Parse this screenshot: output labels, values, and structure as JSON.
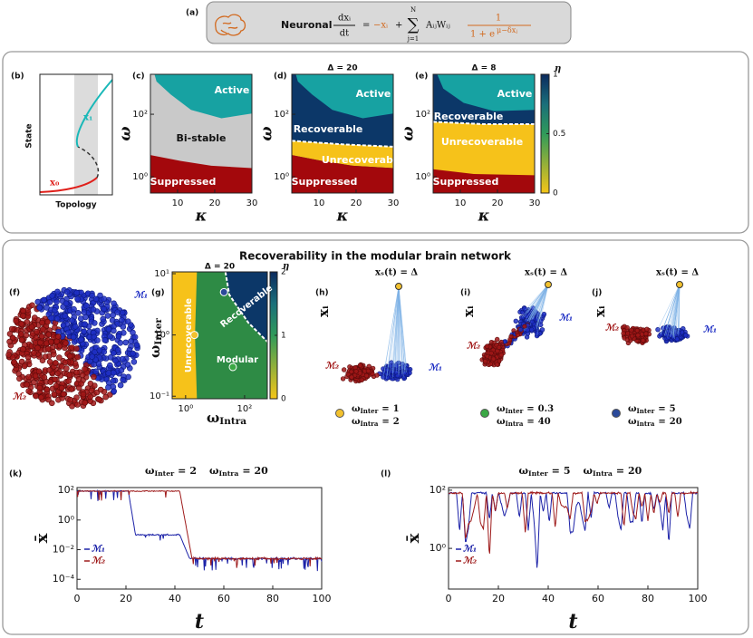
{
  "panel_a": {
    "label": "(a)",
    "model": "Neuronal",
    "eq": {
      "lhs_num": "dxᵢ",
      "lhs_den": "dt",
      "equals": "=",
      "decay": "−xᵢ",
      "plus": "+",
      "sum": "∑",
      "sum_top": "N",
      "sum_bottom": "j=1",
      "coupling": "AᵢⱼWᵢⱼ",
      "frac_num": "1",
      "frac_den": "1 + e",
      "frac_exp": "μ−δxⱼ"
    }
  },
  "panel_b": {
    "label": "(b)",
    "ylabel": "State",
    "xlabel": "Topology",
    "x1": "x₁",
    "x0": "x₀"
  },
  "panel_c": {
    "label": "(c)",
    "xlabel": "κ",
    "ylabel": "ω",
    "xlim": [
      2.7,
      30
    ],
    "xticks": [
      10,
      20,
      30
    ],
    "ylim": [
      0.3,
      1900
    ],
    "ylog": true,
    "yticks": [
      {
        "value": 1,
        "label": "10⁰"
      },
      {
        "value": 100,
        "label": "10²"
      }
    ],
    "active": "Active",
    "bistable": "Bi-stable",
    "suppressed": "Suppressed"
  },
  "panel_d": {
    "label": "(d)",
    "title": "Δ = 20",
    "xlabel": "κ",
    "ylabel": "ω",
    "xlim": [
      2.7,
      30
    ],
    "xticks": [
      10,
      20,
      30
    ],
    "ylim": [
      0.3,
      1900
    ],
    "ylog": true,
    "yticks": [
      {
        "value": 1,
        "label": "10⁰"
      },
      {
        "value": 100,
        "label": "10²"
      }
    ],
    "active": "Active",
    "recoverable": "Recoverable",
    "unrecoverable": "Unrecoverable",
    "suppressed": "Suppressed"
  },
  "panel_e": {
    "label": "(e)",
    "title": "Δ = 8",
    "xlabel": "κ",
    "ylabel": "ω",
    "xlim": [
      2.7,
      30
    ],
    "xticks": [
      10,
      20,
      30
    ],
    "ylim": [
      0.3,
      1900
    ],
    "ylog": true,
    "yticks": [
      {
        "value": 1,
        "label": "10⁰"
      },
      {
        "value": 100,
        "label": "10²"
      }
    ],
    "active": "Active",
    "recoverable": "Recoverable",
    "unrecoverable": "Unrecoverable",
    "suppressed": "Suppressed",
    "colorbar": {
      "label": "η",
      "lim": [
        0,
        1
      ],
      "ticks": [
        0,
        0.5,
        1
      ]
    }
  },
  "section_title": "Recoverability in the modular brain network",
  "panel_f": {
    "label": "(f)",
    "m1": "ℳ₁",
    "m2": "ℳ₂"
  },
  "panel_g": {
    "label": "(g)",
    "title": "Δ = 20",
    "xlabel": {
      "sym": "ω",
      "sub": "Intra"
    },
    "ylabel": {
      "sym": "ω",
      "sub": "Inter"
    },
    "xlim": [
      0.35,
      590
    ],
    "xlog": true,
    "xticks": [
      {
        "value": 1,
        "label": "10⁰"
      },
      {
        "value": 100,
        "label": "10²"
      }
    ],
    "ylim": [
      0.091,
      10.7
    ],
    "ylog": true,
    "yticks": [
      {
        "value": 0.1,
        "label": "10⁻¹"
      },
      {
        "value": 1,
        "label": "10⁰"
      },
      {
        "value": 10,
        "label": "10¹"
      }
    ],
    "unrecoverable": "Unrecoverable",
    "recoverable": "Recoverable",
    "modular": "Modular",
    "colorbar": {
      "label": "η",
      "lim": [
        0,
        2
      ],
      "ticks": [
        0,
        1,
        2
      ]
    }
  },
  "panel_h": {
    "label": "(h)",
    "annotation": "xₛ(t) = Δ",
    "ylabel": "xᵢ",
    "m1": "ℳ₁",
    "m2": "ℳ₂",
    "marker_color": "#f2c12e",
    "omega": "ω",
    "inter_sub": "Inter",
    "intra_sub": "Intra",
    "equals": "=",
    "inter": 1,
    "intra": 2
  },
  "panel_i": {
    "label": "(i)",
    "annotation": "xₛ(t) = Δ",
    "ylabel": "xᵢ",
    "m1": "ℳ₁",
    "m2": "ℳ₂",
    "marker_color": "#3aa845",
    "omega": "ω",
    "inter_sub": "Inter",
    "intra_sub": "Intra",
    "equals": "=",
    "inter": 0.3,
    "intra": 40
  },
  "panel_j": {
    "label": "(j)",
    "annotation": "xₛ(t) = Δ",
    "ylabel": "xᵢ",
    "m1": "ℳ₁",
    "m2": "ℳ₂",
    "marker_color": "#2b4a9a",
    "omega": "ω",
    "inter_sub": "Inter",
    "intra_sub": "Intra",
    "equals": "=",
    "inter": 5,
    "intra": 20
  },
  "panel_k": {
    "label": "(k)",
    "title": {
      "omega": "ω",
      "inter_sub": "Inter",
      "intra_sub": "Intra",
      "equals": "=",
      "inter": 2,
      "intra": 20
    },
    "ylabel": "x̄",
    "xlabel": "t",
    "xlim": [
      0,
      100
    ],
    "xticks": [
      0,
      20,
      40,
      60,
      80,
      100
    ],
    "ylim": [
      2.2e-05,
      155
    ],
    "ylog": true,
    "yticks": [
      {
        "value": 0.0001,
        "label": "10⁻⁴"
      },
      {
        "value": 0.01,
        "label": "10⁻²"
      },
      {
        "value": 1,
        "label": "10⁰"
      },
      {
        "value": 100,
        "label": "10²"
      }
    ],
    "series": [
      {
        "name": "ℳ₁",
        "color": "#1c22a8"
      },
      {
        "name": "ℳ₂",
        "color": "#9e1a1a"
      }
    ]
  },
  "panel_l": {
    "label": "(l)",
    "title": {
      "omega": "ω",
      "inter_sub": "Inter",
      "intra_sub": "Intra",
      "equals": "=",
      "inter": 5,
      "intra": 20
    },
    "ylabel": "x̄",
    "xlabel": "t",
    "xlim": [
      0,
      100
    ],
    "xticks": [
      0,
      20,
      40,
      60,
      80,
      100
    ],
    "ylim": [
      0.04,
      123
    ],
    "ylog": true,
    "yticks": [
      {
        "value": 1,
        "label": "10⁰"
      },
      {
        "value": 100,
        "label": "10²"
      }
    ],
    "series": [
      {
        "name": "ℳ₁",
        "color": "#1c22a8"
      },
      {
        "name": "ℳ₂",
        "color": "#9e1a1a"
      }
    ]
  }
}
